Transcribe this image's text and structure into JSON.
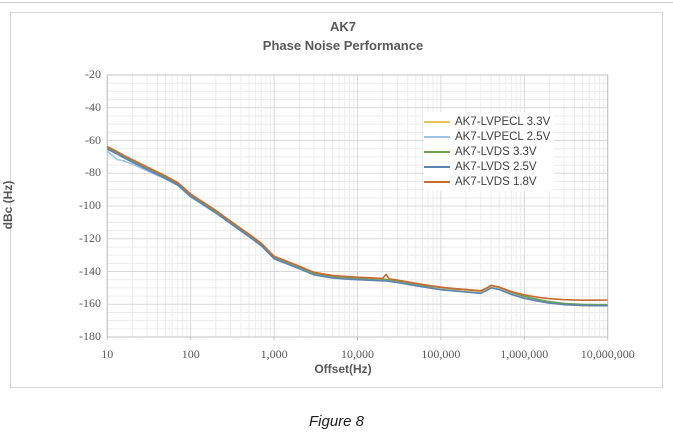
{
  "page": {
    "figure_caption": "Figure 8"
  },
  "chart": {
    "title_line1": "AK7",
    "title_line2": "Phase Noise Performance",
    "x_axis": {
      "title": "Offset(Hz)",
      "tick_labels": [
        "10",
        "100",
        "1,000",
        "10,000",
        "100,000",
        "1,000,000",
        "10,000,000"
      ]
    },
    "y_axis": {
      "title": "dBc (Hz)",
      "tick_labels": [
        "-20",
        "-40",
        "-60",
        "-80",
        "-100",
        "-120",
        "-140",
        "-160",
        "-180"
      ]
    },
    "grid_colors": {
      "major": "#d9d9d9",
      "minor": "#ececec",
      "border": "#c3c3c3"
    }
  },
  "chart_data": {
    "type": "line",
    "title": "AK7 Phase Noise Performance",
    "xlabel": "Offset(Hz)",
    "ylabel": "dBc (Hz)",
    "x_scale": "log",
    "xlim": [
      10,
      10000000
    ],
    "ylim": [
      -180,
      -20
    ],
    "y_major_step": 20,
    "y_minor_step": 5,
    "grid": "major+minor",
    "legend_position": "inside-top-right",
    "x": [
      10,
      13,
      16,
      20,
      30,
      50,
      70,
      100,
      200,
      300,
      500,
      700,
      1000,
      2000,
      3000,
      5000,
      7000,
      10000,
      15000,
      20000,
      22000,
      24000,
      30000,
      50000,
      70000,
      100000,
      150000,
      200000,
      300000,
      350000,
      400000,
      500000,
      700000,
      1000000,
      1500000,
      2000000,
      3000000,
      5000000,
      7000000,
      10000000
    ],
    "series": [
      {
        "name": "AK7-LVPECL 3.3V",
        "color": "#e6c35c",
        "values": [
          -64,
          -67,
          -69.5,
          -72,
          -76.5,
          -82,
          -86,
          -93,
          -103,
          -109.5,
          -117.5,
          -123,
          -131,
          -137,
          -141,
          -142.9,
          -143.5,
          -144,
          -144.4,
          -144.7,
          -144.8,
          -145,
          -145.7,
          -147.7,
          -148.9,
          -150.1,
          -151,
          -151.5,
          -152.3,
          -150.7,
          -149,
          -150,
          -153,
          -155.5,
          -157.6,
          -159,
          -160.3,
          -160.8,
          -160.9,
          -160.8
        ]
      },
      {
        "name": "AK7-LVPECL 2.5V",
        "color": "#9dc3e6",
        "values": [
          -66.5,
          -71.5,
          -72.5,
          -74.5,
          -78.5,
          -83.5,
          -87.5,
          -94.5,
          -104.2,
          -110.7,
          -118.7,
          -124.2,
          -132.2,
          -138.2,
          -141.9,
          -143.8,
          -144.4,
          -144.9,
          -145.3,
          -145.6,
          -145.7,
          -145.9,
          -146.6,
          -148.6,
          -149.8,
          -151,
          -151.9,
          -152.4,
          -153.2,
          -151.6,
          -149.9,
          -150.9,
          -153.9,
          -156.3,
          -158.1,
          -159.2,
          -160.1,
          -160.6,
          -160.8,
          -160.8
        ]
      },
      {
        "name": "AK7-LVDS 3.3V",
        "color": "#71a24f",
        "values": [
          -64.2,
          -67.2,
          -69.7,
          -72.2,
          -76.7,
          -82.2,
          -86.2,
          -93.2,
          -103.2,
          -109.7,
          -117.7,
          -123.2,
          -131.2,
          -137.2,
          -141,
          -142.9,
          -143.5,
          -144,
          -144.4,
          -144.7,
          -144.8,
          -145,
          -145.7,
          -147.7,
          -148.9,
          -149.8,
          -150.6,
          -151,
          -151.8,
          -150.2,
          -148.5,
          -149.5,
          -152.6,
          -155.2,
          -157.2,
          -158.4,
          -159.5,
          -160.1,
          -160.3,
          -160.3
        ]
      },
      {
        "name": "AK7-LVDS 2.5V",
        "color": "#5b84b1",
        "values": [
          -65.2,
          -68.2,
          -70.7,
          -73.2,
          -77.7,
          -83.2,
          -87.2,
          -94.2,
          -104.2,
          -110.7,
          -118.7,
          -124.2,
          -132.2,
          -138.2,
          -142,
          -143.9,
          -144.5,
          -145,
          -145.4,
          -145.7,
          -145.8,
          -146,
          -146.7,
          -148.7,
          -149.9,
          -151.1,
          -152,
          -152.5,
          -153.3,
          -151.7,
          -150,
          -151,
          -154,
          -156.4,
          -158.2,
          -159.3,
          -160.2,
          -160.7,
          -160.9,
          -160.9
        ]
      },
      {
        "name": "AK7-LVDS 1.8V",
        "color": "#c96a32",
        "values": [
          -63.7,
          -66.7,
          -69.2,
          -71.7,
          -76.2,
          -81.7,
          -85.7,
          -92.7,
          -102.7,
          -109.2,
          -117.2,
          -122.7,
          -130.7,
          -136.7,
          -140.5,
          -142.4,
          -143,
          -143.5,
          -143.9,
          -144.2,
          -141.8,
          -144.5,
          -145.2,
          -147.2,
          -148.4,
          -149.6,
          -150.5,
          -151,
          -151.8,
          -150.2,
          -148.5,
          -149.5,
          -152.3,
          -154.3,
          -155.8,
          -156.6,
          -157.2,
          -157.5,
          -157.5,
          -157.4
        ]
      }
    ]
  }
}
